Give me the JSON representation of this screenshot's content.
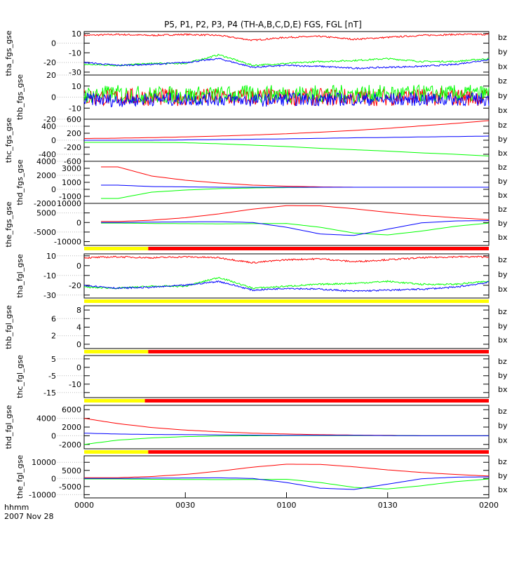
{
  "title": "P5, P1, P2, P3, P4 (TH-A,B,C,D,E) FGS, FGL [nT]",
  "footer": {
    "unit": "hhmm",
    "date": "2007 Nov 28"
  },
  "colors": {
    "bz": "#ff0000",
    "by": "#00ff00",
    "bx": "#0000ff",
    "yellow": "#ffff00"
  },
  "chart_data": {
    "type": "line",
    "x_label": "hhmm",
    "x_range_min": [
      0,
      120
    ],
    "x_ticks": [
      {
        "v": 0,
        "l": "0000"
      },
      {
        "v": 30,
        "l": "0030"
      },
      {
        "v": 60,
        "l": "0100"
      },
      {
        "v": 90,
        "l": "0130"
      },
      {
        "v": 120,
        "l": "0200"
      }
    ],
    "legend": [
      "bz",
      "by",
      "bx"
    ],
    "sample_minutes": [
      0,
      10,
      20,
      30,
      40,
      50,
      60,
      70,
      80,
      90,
      100,
      110,
      120
    ],
    "panels": [
      {
        "name": "tha_fgs_gse",
        "ylim": [
          -33,
          12
        ],
        "ticks": [
          10,
          0,
          -10,
          -20,
          -30
        ],
        "series": [
          {
            "name": "bz",
            "values": [
              8,
              9,
              8,
              9,
              8,
              3,
              6,
              7,
              4,
              6,
              8,
              9,
              9
            ],
            "noise": 0.8
          },
          {
            "name": "by",
            "values": [
              -22,
              -23,
              -21,
              -21,
              -12,
              -23,
              -21,
              -19,
              -18,
              -16,
              -19,
              -19,
              -16
            ],
            "noise": 0.8
          },
          {
            "name": "bx",
            "values": [
              -20,
              -23,
              -22,
              -20,
              -16,
              -25,
              -23,
              -24,
              -26,
              -25,
              -24,
              -22,
              -17
            ],
            "noise": 0.8
          }
        ]
      },
      {
        "name": "thb_fgs_gse",
        "ylim": [
          -20,
          20
        ],
        "ticks": [
          20,
          10,
          0,
          -10,
          -20
        ],
        "series": [
          {
            "name": "bz",
            "values": [
              0,
              0,
              0,
              0,
              0,
              0,
              0,
              0,
              0,
              0,
              0,
              0,
              0
            ],
            "noise": 8
          },
          {
            "name": "by",
            "values": [
              2,
              3,
              2,
              2,
              2,
              3,
              3,
              3,
              3,
              3,
              3,
              3,
              3
            ],
            "noise": 8
          },
          {
            "name": "bx",
            "values": [
              -2,
              -3,
              -2,
              -2,
              -2,
              -3,
              -2,
              -2,
              -2,
              -2,
              -2,
              -2,
              -2
            ],
            "noise": 6
          }
        ]
      },
      {
        "name": "thc_fgs_gse",
        "ylim": [
          -600,
          600
        ],
        "ticks": [
          600,
          400,
          200,
          0,
          -200,
          -400,
          -600
        ],
        "series": [
          {
            "name": "bz",
            "values": [
              50,
              60,
              75,
              95,
              120,
              150,
              185,
              230,
              280,
              340,
              410,
              480,
              560
            ]
          },
          {
            "name": "by",
            "values": [
              -60,
              -60,
              -60,
              -70,
              -100,
              -140,
              -180,
              -230,
              -270,
              -310,
              -360,
              -400,
              -450
            ]
          },
          {
            "name": "bx",
            "values": [
              0,
              0,
              0,
              10,
              20,
              30,
              40,
              55,
              70,
              80,
              95,
              105,
              120
            ]
          }
        ]
      },
      {
        "name": "thd_fgs_gse",
        "ylim": [
          -2000,
          4000
        ],
        "ticks": [
          4000,
          3000,
          2000,
          1000,
          0,
          -1000,
          -2000
        ],
        "start": 5,
        "series": [
          {
            "name": "bz",
            "values": [
              3200,
              3200,
              1900,
              1300,
              900,
              600,
              450,
              350,
              300,
              300,
              300,
              300,
              300
            ]
          },
          {
            "name": "by",
            "values": [
              -1300,
              -1300,
              -400,
              -100,
              100,
              200,
              250,
              300,
              300,
              300,
              300,
              300,
              300
            ]
          },
          {
            "name": "bx",
            "values": [
              600,
              600,
              400,
              350,
              300,
              300,
              300,
              300,
              300,
              300,
              300,
              300,
              300
            ]
          }
        ]
      },
      {
        "name": "the_fgs_gse",
        "ylim": [
          -12000,
          10000
        ],
        "ticks": [
          10000,
          5000,
          0,
          -5000,
          -10000
        ],
        "start": 5,
        "series": [
          {
            "name": "bz",
            "values": [
              500,
              500,
              1200,
              2500,
              4500,
              7000,
              8800,
              8700,
              7200,
              5300,
              3700,
              2500,
              1500
            ]
          },
          {
            "name": "by",
            "values": [
              -300,
              -300,
              -500,
              -600,
              -700,
              -600,
              -500,
              -2500,
              -5500,
              -6500,
              -4500,
              -2000,
              -300
            ]
          },
          {
            "name": "bx",
            "values": [
              0,
              0,
              200,
              300,
              400,
              0,
              -2500,
              -6000,
              -6800,
              -3500,
              -200,
              800,
              1000
            ]
          }
        ]
      },
      {
        "name": "tha_fgl_gse",
        "ylim": [
          -33,
          12
        ],
        "ticks": [
          10,
          0,
          -10,
          -20,
          -30
        ],
        "series": [
          {
            "name": "bz",
            "values": [
              8,
              9,
              8,
              9,
              8,
              3,
              6,
              7,
              4,
              6,
              8,
              9,
              9
            ],
            "noise": 0.8
          },
          {
            "name": "by",
            "values": [
              -22,
              -23,
              -21,
              -21,
              -12,
              -23,
              -21,
              -19,
              -18,
              -16,
              -19,
              -19,
              -16
            ],
            "noise": 0.8
          },
          {
            "name": "bx",
            "values": [
              -20,
              -23,
              -22,
              -20,
              -16,
              -25,
              -23,
              -24,
              -26,
              -25,
              -24,
              -22,
              -17
            ],
            "noise": 0.8
          }
        ]
      },
      {
        "name": "thb_fgl_gse",
        "ylim": [
          -1,
          9
        ],
        "ticks": [
          8,
          6,
          4,
          2,
          0
        ],
        "series": []
      },
      {
        "name": "thc_fgl_gse",
        "ylim": [
          -18,
          7
        ],
        "ticks": [
          5,
          0,
          -5,
          -10,
          -15
        ],
        "series": []
      },
      {
        "name": "thd_fgl_gse",
        "ylim": [
          -3000,
          7000
        ],
        "ticks": [
          6000,
          4000,
          2000,
          0,
          -2000
        ],
        "series": [
          {
            "name": "bz",
            "values": [
              4000,
              2800,
              1900,
              1300,
              900,
              600,
              400,
              250,
              150,
              100,
              0,
              0,
              0
            ]
          },
          {
            "name": "by",
            "values": [
              -2000,
              -1000,
              -500,
              -200,
              -50,
              0,
              50,
              50,
              50,
              50,
              0,
              0,
              0
            ]
          },
          {
            "name": "bx",
            "values": [
              600,
              400,
              300,
              250,
              200,
              150,
              100,
              100,
              100,
              50,
              0,
              0,
              0
            ]
          }
        ]
      },
      {
        "name": "the_fgl_gse",
        "ylim": [
          -12000,
          14000
        ],
        "ticks": [
          10000,
          5000,
          0,
          -5000,
          -10000
        ],
        "series": [
          {
            "name": "bz",
            "values": [
              500,
              500,
              1200,
              2500,
              4500,
              7000,
              8800,
              8700,
              7200,
              5300,
              3700,
              2500,
              1500
            ]
          },
          {
            "name": "by",
            "values": [
              -300,
              -300,
              -500,
              -600,
              -700,
              -600,
              -500,
              -2500,
              -5500,
              -6500,
              -4500,
              -2000,
              -300
            ]
          },
          {
            "name": "bx",
            "values": [
              0,
              0,
              200,
              300,
              400,
              0,
              -2500,
              -6000,
              -6800,
              -3500,
              -200,
              800,
              1000
            ]
          }
        ]
      }
    ],
    "status_bars": [
      {
        "after_panel": 4,
        "yellow_until_min": 19
      },
      {
        "after_panel": 5,
        "yellow_until_min": 120
      },
      {
        "after_panel": 6,
        "yellow_until_min": 19
      },
      {
        "after_panel": 7,
        "yellow_until_min": 18
      },
      {
        "after_panel": 8,
        "yellow_until_min": 19
      }
    ]
  }
}
